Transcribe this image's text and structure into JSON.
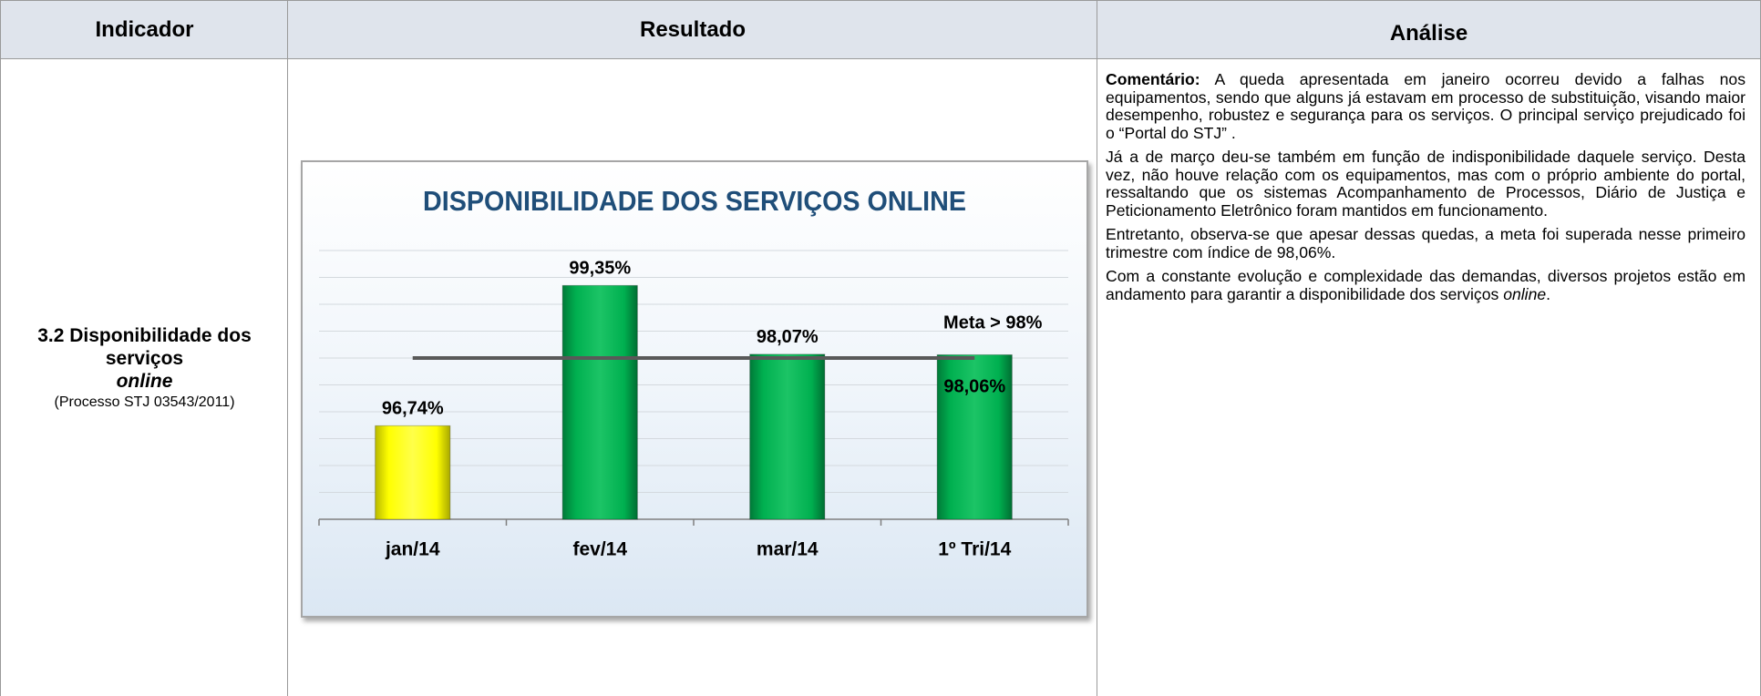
{
  "header": {
    "indicator": "Indicador",
    "result": "Resultado",
    "analysis": "Análise"
  },
  "indicator": {
    "title": "3.2 Disponibilidade dos serviços ",
    "emph": "online",
    "process": "(Processo STJ 03543/2011)"
  },
  "analysis": {
    "paragraphs": [
      {
        "label": "Comentário:",
        "text": " A queda apresentada em janeiro ocorreu devido a falhas nos equipamentos, sendo que alguns já estavam em processo de substituição, visando maior desempenho, robustez e segurança para os serviços. O principal serviço prejudicado foi o “Portal do STJ” ."
      },
      {
        "text": "Já a de março deu-se também em função de indisponibilidade daquele serviço. Desta vez, não houve relação com os equipamentos, mas com o próprio ambiente do portal, ressaltando que os sistemas Acompanhamento de Processos, Diário de Justiça e Peticionamento Eletrônico foram mantidos em funcionamento."
      },
      {
        "text": "Entretanto, observa-se que apesar dessas quedas, a meta foi superada nesse primeiro trimestre com índice de 98,06%."
      },
      {
        "text": "Com a constante evolução e complexidade das demandas, diversos projetos estão em andamento para garantir a disponibilidade dos serviços ",
        "emph": "online",
        "tail": "."
      }
    ]
  },
  "chart_data": {
    "type": "bar",
    "title": "DISPONIBILIDADE DOS SERVIÇOS ONLINE",
    "categories": [
      "jan/14",
      "fev/14",
      "mar/14",
      "1º Tri/14"
    ],
    "values": [
      96.74,
      99.35,
      98.07,
      98.06
    ],
    "value_labels": [
      "96,74%",
      "99,35%",
      "98,07%",
      "98,06%"
    ],
    "colors": [
      "#ffff00",
      "#00b050",
      "#00b050",
      "#00b050"
    ],
    "target": {
      "value": 98,
      "label": "Meta > 98%",
      "color": "#595959"
    },
    "ylim": [
      95,
      100
    ],
    "yticks": [
      95,
      95.5,
      96,
      96.5,
      97,
      97.5,
      98,
      98.5,
      99,
      99.5,
      100
    ],
    "grid": true
  }
}
